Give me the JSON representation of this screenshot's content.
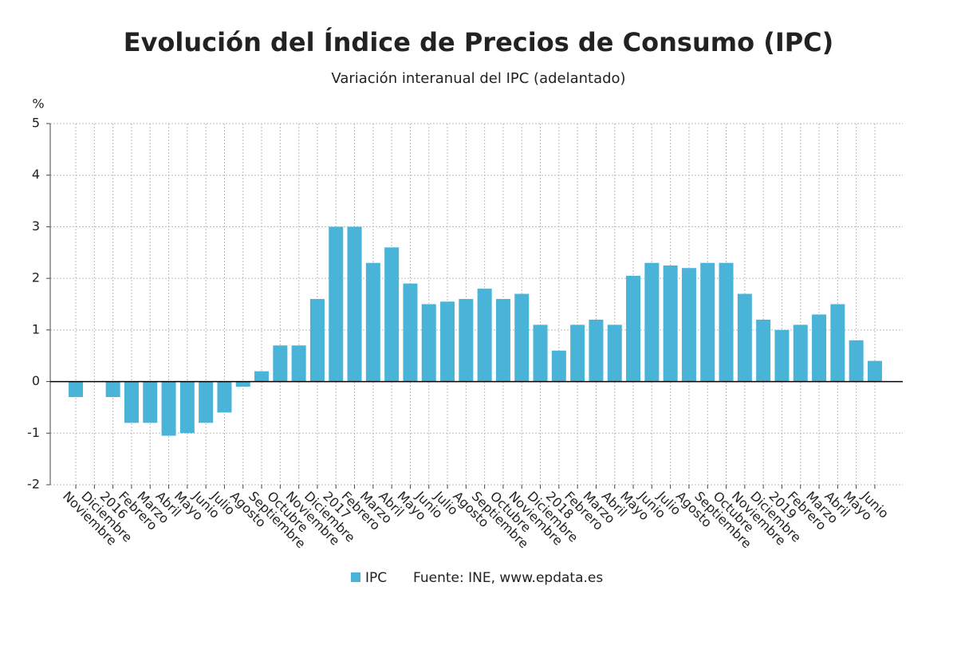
{
  "chart_data": {
    "type": "bar",
    "title": "Evolución del Índice de Precios de Consumo (IPC)",
    "subtitle": "Variación interanual del IPC (adelantado)",
    "y_label": "%",
    "source": "Fuente: INE, www.epdata.es",
    "categories": [
      "Noviembre",
      "Diciembre",
      "2016",
      "Febrero",
      "Marzo",
      "Abril",
      "Mayo",
      "Junio",
      "Julio",
      "Agosto",
      "Septiembre",
      "Octubre",
      "Noviembre",
      "Diciembre",
      "2017",
      "Febrero",
      "Marzo",
      "Abril",
      "Mayo",
      "Junio",
      "Julio",
      "Agosto",
      "Septiembre",
      "Octubre",
      "Noviembre",
      "Diciembre",
      "2018",
      "Febrero",
      "Marzo",
      "Abril",
      "Mayo",
      "Junio",
      "Julio",
      "Agosto",
      "Septiembre",
      "Octubre",
      "Noviembre",
      "Diciembre",
      "2019",
      "Febrero",
      "Marzo",
      "Abril",
      "Mayo",
      "Junio"
    ],
    "series": [
      {
        "name": "IPC",
        "color": "#4ab3d8",
        "values": [
          -0.3,
          0.0,
          -0.3,
          -0.8,
          -0.8,
          -1.05,
          -1.0,
          -0.8,
          -0.6,
          -0.1,
          0.2,
          0.7,
          0.7,
          1.6,
          3.0,
          3.0,
          2.3,
          2.6,
          1.9,
          1.5,
          1.55,
          1.6,
          1.8,
          1.6,
          1.7,
          1.1,
          0.6,
          1.1,
          1.2,
          1.1,
          2.05,
          2.3,
          2.25,
          2.2,
          2.3,
          2.3,
          1.7,
          1.2,
          1.0,
          1.1,
          1.3,
          1.5,
          0.8,
          0.4
        ]
      }
    ],
    "ylim": [
      -2,
      5
    ],
    "yticks": [
      -2,
      -1,
      0,
      1,
      2,
      3,
      4,
      5
    ],
    "grid": true,
    "legend": "bottom"
  }
}
